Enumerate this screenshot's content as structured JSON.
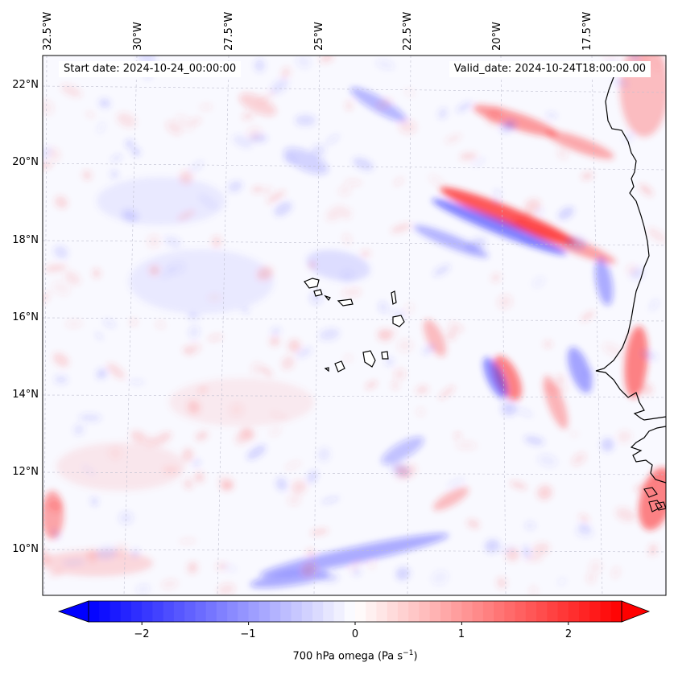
{
  "header": {
    "start_label": "Start date: 2024-10-24_00:00:00",
    "valid_label": "Valid_date: 2024-10-24T18:00:00.00"
  },
  "map": {
    "lon_labels": [
      "32.5°W",
      "30°W",
      "27.5°W",
      "25°W",
      "22.5°W",
      "20°W",
      "17.5°W"
    ],
    "lat_labels": [
      "22°N",
      "20°N",
      "18°N",
      "16°N",
      "14°N",
      "12°N",
      "10°N"
    ],
    "field_variable": "700 hPa omega",
    "colors": {
      "negative": "#0000ff",
      "neutral": "#ffffff",
      "positive": "#ff0000",
      "coast": "#000000"
    }
  },
  "colorbar": {
    "ticks": [
      "−2",
      "−1",
      "0",
      "1",
      "2"
    ],
    "label_text": "700 hPa omega (Pa s",
    "label_sup": "−1",
    "label_end": ")",
    "vmin": -2.5,
    "vmax": 2.5
  }
}
